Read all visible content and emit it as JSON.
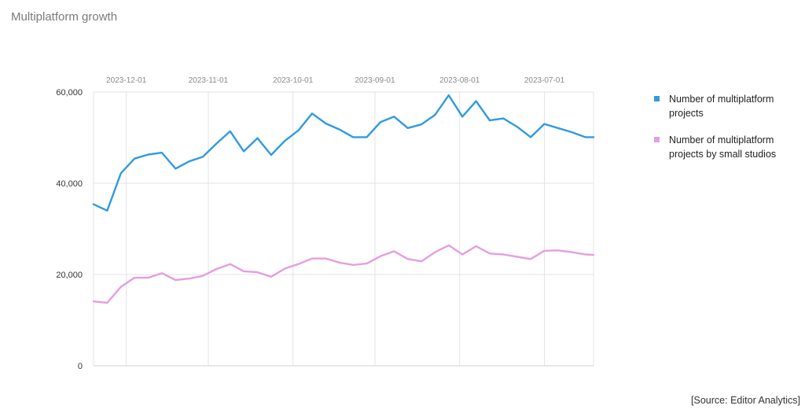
{
  "page": {
    "title": "Multiplatform growth",
    "source": "[Source: Editor Analytics]"
  },
  "chart_data": {
    "type": "line",
    "title": "Multiplatform growth",
    "xlabel": "",
    "ylabel": "",
    "x_axis_position": "top",
    "x_reversed": true,
    "x_tick_labels": [
      "2023-12-01",
      "2023-11-01",
      "2023-10-01",
      "2023-09-01",
      "2023-08-01",
      "2023-07-01"
    ],
    "x_range": [
      "2023-12-13",
      "2023-06-13"
    ],
    "ylim": [
      0,
      60000
    ],
    "y_ticks": [
      0,
      20000,
      40000,
      60000
    ],
    "y_tick_labels": [
      "0",
      "20,000",
      "40,000",
      "60,000"
    ],
    "grid": true,
    "legend_position": "right",
    "x": [
      "2023-12-13",
      "2023-12-08",
      "2023-12-03",
      "2023-11-28",
      "2023-11-23",
      "2023-11-18",
      "2023-11-13",
      "2023-11-08",
      "2023-11-03",
      "2023-10-29",
      "2023-10-24",
      "2023-10-19",
      "2023-10-14",
      "2023-10-09",
      "2023-10-04",
      "2023-09-29",
      "2023-09-24",
      "2023-09-19",
      "2023-09-14",
      "2023-09-09",
      "2023-09-04",
      "2023-08-30",
      "2023-08-25",
      "2023-08-20",
      "2023-08-15",
      "2023-08-10",
      "2023-08-05",
      "2023-07-31",
      "2023-07-26",
      "2023-07-21",
      "2023-07-16",
      "2023-07-11",
      "2023-07-06",
      "2023-07-01",
      "2023-06-26",
      "2023-06-21",
      "2023-06-16",
      "2023-06-13"
    ],
    "series": [
      {
        "name": "Number of multiplatform projects",
        "color": "#2f9be0",
        "values": [
          35400,
          34000,
          42200,
          45400,
          46300,
          46700,
          43200,
          44800,
          45800,
          48700,
          51400,
          47000,
          49900,
          46200,
          49300,
          51600,
          55300,
          53100,
          51800,
          50100,
          50100,
          53400,
          54600,
          52100,
          52900,
          55000,
          59300,
          54600,
          58000,
          53800,
          54200,
          52400,
          50100,
          53000,
          52100,
          51200,
          50100,
          50100
        ]
      },
      {
        "name": "Number of multiplatform projects by small studios",
        "color": "#e49ee0",
        "values": [
          14100,
          13800,
          17300,
          19300,
          19300,
          20300,
          18800,
          19100,
          19700,
          21200,
          22300,
          20700,
          20500,
          19500,
          21300,
          22300,
          23500,
          23500,
          22600,
          22100,
          22400,
          24000,
          25100,
          23400,
          22900,
          24900,
          26400,
          24400,
          26200,
          24600,
          24400,
          23900,
          23400,
          25200,
          25300,
          24900,
          24400,
          24300
        ]
      }
    ]
  }
}
